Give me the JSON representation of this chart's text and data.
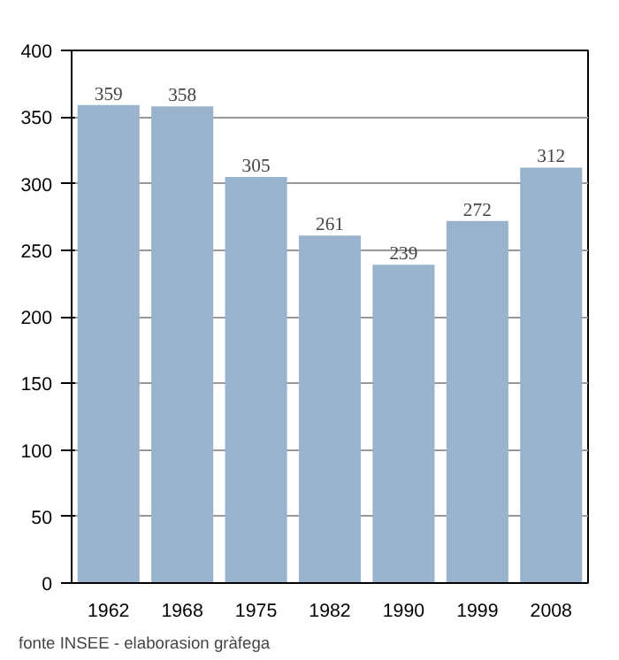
{
  "chart_data": {
    "type": "bar",
    "categories": [
      "1962",
      "1968",
      "1975",
      "1982",
      "1990",
      "1999",
      "2008"
    ],
    "values": [
      359,
      358,
      305,
      261,
      239,
      272,
      312
    ],
    "color": "#99b3cc",
    "ylim": [
      0,
      400
    ],
    "yticks": [
      0,
      50,
      100,
      150,
      200,
      250,
      300,
      350,
      400
    ],
    "grid": "y",
    "data_labels": true,
    "annotations": [
      "fonte INSEE - elaborasion gràfega"
    ]
  }
}
